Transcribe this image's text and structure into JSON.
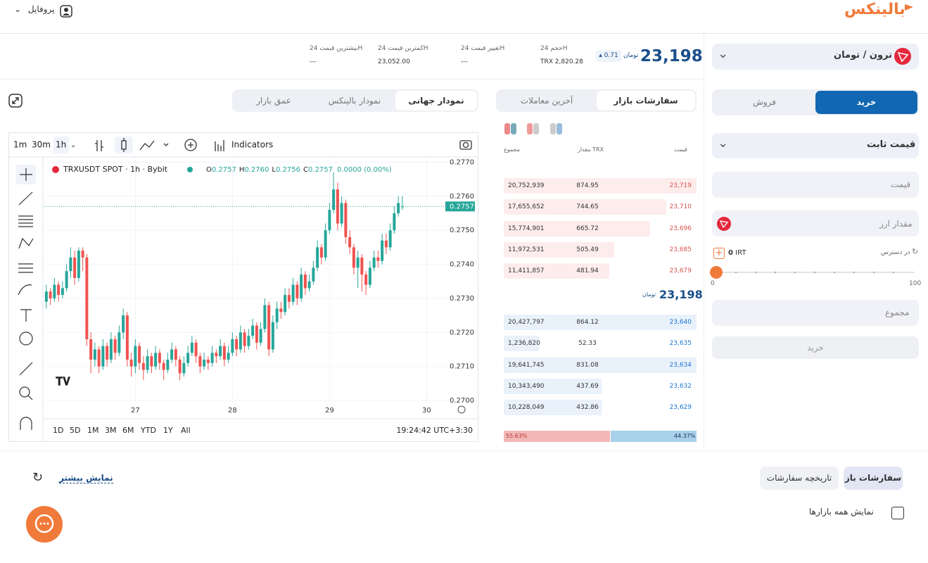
{
  "header": {
    "logo": "بالینکس",
    "profile": "پروفایل"
  },
  "market": {
    "pair": "ترون / تومان",
    "price": "23,198",
    "currency": "تومان",
    "change": "0.71",
    "stats": [
      {
        "label": "حجم 24H",
        "value": "TRX 2,820.28"
      },
      {
        "label": "تغییر قیمت 24H",
        "value": "---"
      },
      {
        "label": "کمترین قیمت 24H",
        "value": "23,052.00"
      },
      {
        "label": "بیشترین قیمت 24H",
        "value": "---"
      }
    ]
  },
  "chart_tabs": [
    "نمودار جهانی",
    "نمودار بالینکس",
    "عمق بازار"
  ],
  "orderbook": {
    "tabs": [
      "سفارشات بازار",
      "آخرین معاملات"
    ],
    "columns": [
      "قیمت",
      "مقدار TRX",
      "مجموع"
    ],
    "asks": [
      [
        "23,719",
        "874.95",
        "20,752,939"
      ],
      [
        "23,710",
        "744.65",
        "17,655,652"
      ],
      [
        "23,696",
        "665.72",
        "15,774,901"
      ],
      [
        "23,685",
        "505.49",
        "11,972,531"
      ],
      [
        "23,679",
        "481.94",
        "11,411,857"
      ]
    ],
    "last_price": "23,198",
    "bids": [
      [
        "23,640",
        "864.12",
        "20,427,797"
      ],
      [
        "23,635",
        "52.33",
        "1,236,820"
      ],
      [
        "23,634",
        "831.08",
        "19,641,745"
      ],
      [
        "23,632",
        "437.69",
        "10,343,490"
      ],
      [
        "23,629",
        "432.86",
        "10,228,049"
      ]
    ],
    "sell_share": {
      "value": 55.63,
      "label": "55.63%"
    },
    "buy_share": {
      "value": 44.37,
      "label": "44.37%"
    }
  },
  "chart_ui": {
    "intervals": [
      "1m",
      "30m",
      "1h"
    ],
    "indicators": "Indicators",
    "ranges": [
      "1D",
      "5D",
      "1M",
      "3M",
      "6M",
      "YTD",
      "1Y",
      "All"
    ],
    "time": "19:24:42 UTC+3:30"
  },
  "chart_data": {
    "type": "candlestick",
    "symbol": "TRXUSDT SPOT · 1h · Bybit",
    "ohlc_legend": [
      {
        "key": "O",
        "value": "0.2757"
      },
      {
        "key": "H",
        "value": "0.2760"
      },
      {
        "key": "L",
        "value": "0.2756"
      },
      {
        "key": "C",
        "value": "0.2757"
      }
    ],
    "change": "0.0000 (0.00%)",
    "last": 0.2757,
    "xlim": [
      -0.5,
      97.5
    ],
    "xticks": [
      {
        "value": 22,
        "label": "27"
      },
      {
        "value": 46,
        "label": "28"
      },
      {
        "value": 70,
        "label": "29"
      },
      {
        "value": 94,
        "label": "30"
      }
    ],
    "ylim": [
      0.26996,
      0.27703
    ],
    "yticks": [
      {
        "value": 0.27,
        "label": "0.2700"
      },
      {
        "value": 0.271,
        "label": "0.2710"
      },
      {
        "value": 0.272,
        "label": "0.2720"
      },
      {
        "value": 0.273,
        "label": "0.2730"
      },
      {
        "value": 0.274,
        "label": "0.2740"
      },
      {
        "value": 0.275,
        "label": "0.2750"
      },
      {
        "value": 0.276,
        "label": "0.2760"
      },
      {
        "value": 0.277,
        "label": "0.2770"
      }
    ],
    "grid": true,
    "up_color": "#26a69a",
    "down_color": "#ef5350",
    "candles": [
      [
        0.2729,
        0.2734,
        0.2727,
        0.2732
      ],
      [
        0.2732,
        0.2733,
        0.2728,
        0.273
      ],
      [
        0.273,
        0.2736,
        0.2729,
        0.2734
      ],
      [
        0.2734,
        0.2735,
        0.2729,
        0.2731
      ],
      [
        0.2731,
        0.2735,
        0.273,
        0.2733
      ],
      [
        0.2733,
        0.274,
        0.2732,
        0.2738
      ],
      [
        0.2738,
        0.2745,
        0.2736,
        0.2742
      ],
      [
        0.2742,
        0.2744,
        0.2734,
        0.2736
      ],
      [
        0.2736,
        0.2745,
        0.2735,
        0.2744
      ],
      [
        0.2744,
        0.2745,
        0.2738,
        0.2742
      ],
      [
        0.2742,
        0.2743,
        0.2716,
        0.2718
      ],
      [
        0.2718,
        0.272,
        0.2708,
        0.2712
      ],
      [
        0.2712,
        0.2717,
        0.271,
        0.2715
      ],
      [
        0.2715,
        0.2716,
        0.2708,
        0.271
      ],
      [
        0.271,
        0.2718,
        0.2709,
        0.2716
      ],
      [
        0.2716,
        0.2717,
        0.271,
        0.2712
      ],
      [
        0.2712,
        0.272,
        0.2711,
        0.2718
      ],
      [
        0.2718,
        0.2719,
        0.2712,
        0.2714
      ],
      [
        0.2714,
        0.2722,
        0.2713,
        0.272
      ],
      [
        0.272,
        0.2727,
        0.2718,
        0.2725
      ],
      [
        0.2725,
        0.2726,
        0.271,
        0.2712
      ],
      [
        0.2712,
        0.2714,
        0.2707,
        0.271
      ],
      [
        0.271,
        0.2718,
        0.2708,
        0.2716
      ],
      [
        0.2716,
        0.2717,
        0.2709,
        0.2711
      ],
      [
        0.2711,
        0.2713,
        0.2706,
        0.2709
      ],
      [
        0.2709,
        0.2715,
        0.2708,
        0.2713
      ],
      [
        0.2713,
        0.2714,
        0.2708,
        0.271
      ],
      [
        0.271,
        0.2716,
        0.2709,
        0.2714
      ],
      [
        0.2714,
        0.2715,
        0.2709,
        0.2711
      ],
      [
        0.2711,
        0.2712,
        0.2706,
        0.2709
      ],
      [
        0.2709,
        0.2714,
        0.2708,
        0.2712
      ],
      [
        0.2712,
        0.2717,
        0.2711,
        0.2715
      ],
      [
        0.2715,
        0.2716,
        0.271,
        0.2712
      ],
      [
        0.2712,
        0.2713,
        0.2706,
        0.2708
      ],
      [
        0.2708,
        0.2713,
        0.2707,
        0.2711
      ],
      [
        0.2711,
        0.2716,
        0.271,
        0.2714
      ],
      [
        0.2714,
        0.2719,
        0.2713,
        0.2717
      ],
      [
        0.2717,
        0.2718,
        0.2711,
        0.2713
      ],
      [
        0.2713,
        0.2714,
        0.2708,
        0.271
      ],
      [
        0.271,
        0.2714,
        0.2709,
        0.2712
      ],
      [
        0.2712,
        0.2713,
        0.2709,
        0.2711
      ],
      [
        0.2711,
        0.2716,
        0.271,
        0.2714
      ],
      [
        0.2714,
        0.2715,
        0.2711,
        0.2713
      ],
      [
        0.2713,
        0.2718,
        0.2712,
        0.2716
      ],
      [
        0.2716,
        0.2717,
        0.271,
        0.2712
      ],
      [
        0.2712,
        0.2716,
        0.2711,
        0.2714
      ],
      [
        0.2714,
        0.272,
        0.2713,
        0.2718
      ],
      [
        0.2718,
        0.2719,
        0.2713,
        0.2715
      ],
      [
        0.2715,
        0.2722,
        0.2714,
        0.272
      ],
      [
        0.272,
        0.2721,
        0.2714,
        0.2716
      ],
      [
        0.2716,
        0.2721,
        0.2715,
        0.2719
      ],
      [
        0.2719,
        0.2724,
        0.2718,
        0.2722
      ],
      [
        0.2722,
        0.2723,
        0.2715,
        0.2717
      ],
      [
        0.2717,
        0.2723,
        0.2716,
        0.2721
      ],
      [
        0.2721,
        0.273,
        0.272,
        0.2728
      ],
      [
        0.2728,
        0.2729,
        0.2713,
        0.2715
      ],
      [
        0.2715,
        0.2725,
        0.2714,
        0.2723
      ],
      [
        0.2723,
        0.2729,
        0.2721,
        0.2727
      ],
      [
        0.2727,
        0.2729,
        0.2724,
        0.2726
      ],
      [
        0.2726,
        0.2733,
        0.2725,
        0.2731
      ],
      [
        0.2731,
        0.2733,
        0.2727,
        0.2729
      ],
      [
        0.2729,
        0.2736,
        0.2728,
        0.2734
      ],
      [
        0.2734,
        0.2735,
        0.2728,
        0.273
      ],
      [
        0.273,
        0.2739,
        0.2729,
        0.2737
      ],
      [
        0.2737,
        0.2738,
        0.2731,
        0.2733
      ],
      [
        0.2733,
        0.2737,
        0.2732,
        0.2735
      ],
      [
        0.2735,
        0.2741,
        0.2734,
        0.2739
      ],
      [
        0.2739,
        0.2747,
        0.2738,
        0.2745
      ],
      [
        0.2745,
        0.2746,
        0.274,
        0.2742
      ],
      [
        0.2742,
        0.2752,
        0.2741,
        0.275
      ],
      [
        0.275,
        0.2758,
        0.2749,
        0.2756
      ],
      [
        0.2756,
        0.2767,
        0.2755,
        0.2762
      ],
      [
        0.2762,
        0.2764,
        0.275,
        0.2752
      ],
      [
        0.2752,
        0.276,
        0.2751,
        0.2758
      ],
      [
        0.2758,
        0.2759,
        0.2746,
        0.2748
      ],
      [
        0.2748,
        0.275,
        0.2743,
        0.2745
      ],
      [
        0.2745,
        0.2746,
        0.2737,
        0.2739
      ],
      [
        0.2739,
        0.2744,
        0.2733,
        0.2742
      ],
      [
        0.2742,
        0.2743,
        0.2732,
        0.2737
      ],
      [
        0.2737,
        0.2738,
        0.2731,
        0.2734
      ],
      [
        0.2734,
        0.2741,
        0.2733,
        0.2739
      ],
      [
        0.2739,
        0.2744,
        0.2738,
        0.2742
      ],
      [
        0.2742,
        0.2744,
        0.2739,
        0.2741
      ],
      [
        0.2741,
        0.2749,
        0.274,
        0.2747
      ],
      [
        0.2747,
        0.2749,
        0.2743,
        0.2745
      ],
      [
        0.2745,
        0.2752,
        0.2744,
        0.275
      ],
      [
        0.275,
        0.2757,
        0.2749,
        0.2755
      ],
      [
        0.2755,
        0.276,
        0.2754,
        0.2758
      ],
      [
        0.2757,
        0.276,
        0.2756,
        0.2757
      ]
    ]
  },
  "form": {
    "tabs": [
      "خرید",
      "فروش"
    ],
    "order_type": "قیمت ثابت",
    "price_placeholder": "قیمت",
    "amount_placeholder": "مقدار ارز",
    "available_label": "در دسترس",
    "available": "0",
    "available_unit": "IRT",
    "slider_min": "0",
    "slider_max": "100",
    "total_placeholder": "مجموع",
    "submit": "خرید"
  },
  "bottom": {
    "tabs": [
      "سفارشات باز",
      "تاریخچه سفارشات"
    ],
    "show_more": "نمایش بیشتر",
    "all_markets": "نمایش همه بازارها"
  }
}
